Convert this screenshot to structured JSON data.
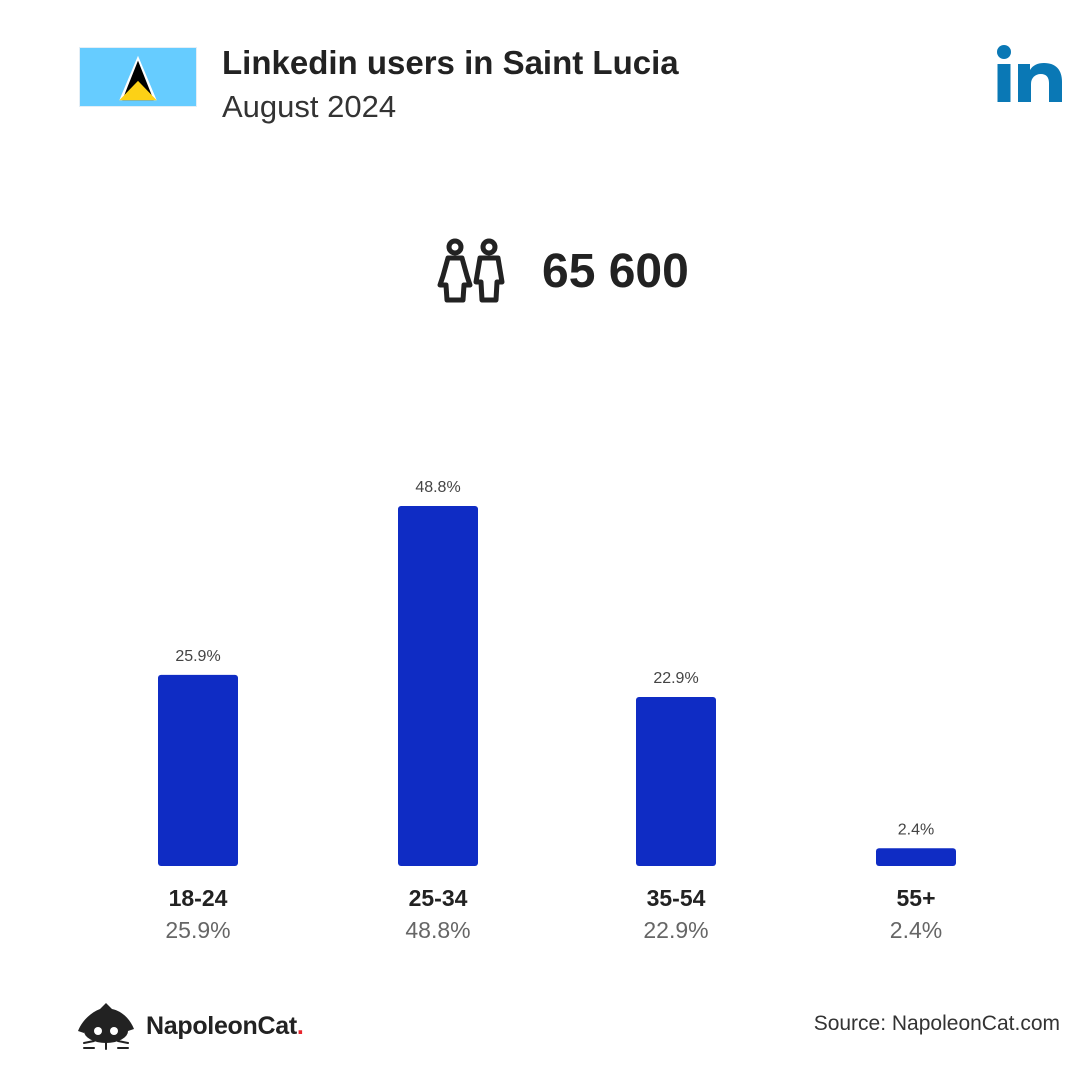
{
  "header": {
    "title": "Linkedin users in Saint Lucia",
    "subtitle": "August 2024"
  },
  "summary": {
    "total_users": "65 600"
  },
  "icons": {
    "flag": "saint-lucia-flag-icon",
    "platform": "linkedin-logo-icon",
    "users": "people-icon",
    "brand": "napoleoncat-logo-icon"
  },
  "colors": {
    "bar": "#0f2cc4",
    "linkedin": "#0a78b5",
    "flag_blue": "#66ccff",
    "flag_yellow": "#fcd116"
  },
  "footer": {
    "brand": "NapoleonCat",
    "brand_dot": ".",
    "source": "Source: NapoleonCat.com"
  },
  "chart_data": {
    "type": "bar",
    "categories": [
      "18-24",
      "25-34",
      "35-54",
      "55+"
    ],
    "values": [
      25.9,
      48.8,
      22.9,
      2.4
    ],
    "value_labels": [
      "25.9%",
      "48.8%",
      "22.9%",
      "2.4%"
    ],
    "title": "",
    "xlabel": "",
    "ylabel": "",
    "ylim": [
      0,
      50
    ],
    "grid": false,
    "legend": "none"
  }
}
